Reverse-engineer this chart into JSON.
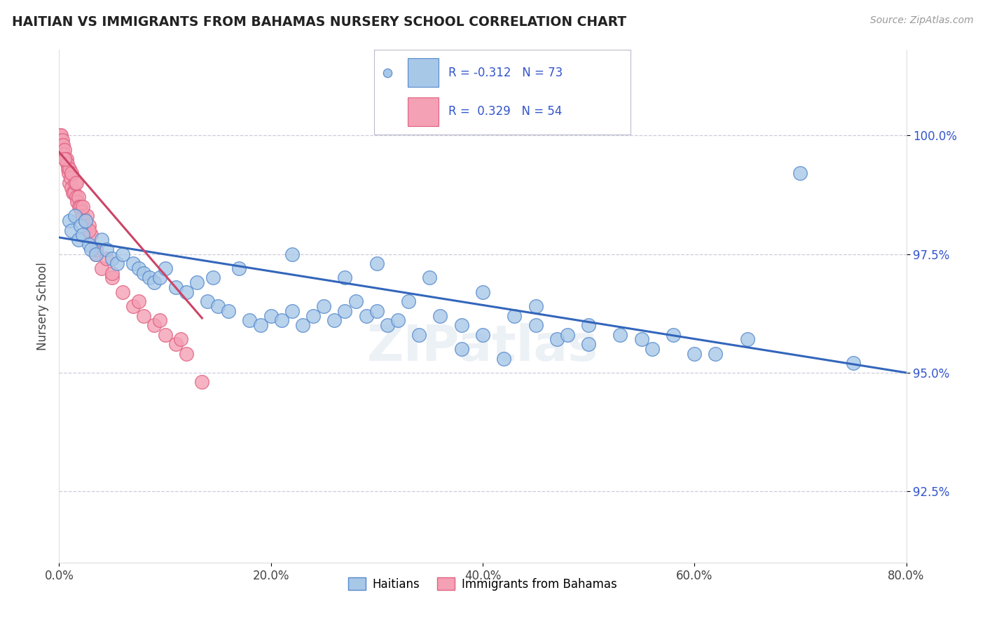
{
  "title": "HAITIAN VS IMMIGRANTS FROM BAHAMAS NURSERY SCHOOL CORRELATION CHART",
  "source": "Source: ZipAtlas.com",
  "ylabel": "Nursery School",
  "x_tick_labels": [
    "0.0%",
    "20.0%",
    "40.0%",
    "60.0%",
    "80.0%"
  ],
  "x_tick_vals": [
    0.0,
    20.0,
    40.0,
    60.0,
    80.0
  ],
  "y_tick_labels": [
    "92.5%",
    "95.0%",
    "97.5%",
    "100.0%"
  ],
  "y_tick_vals": [
    92.5,
    95.0,
    97.5,
    100.0
  ],
  "xlim": [
    0.0,
    80.0
  ],
  "ylim": [
    91.0,
    101.8
  ],
  "legend_label1": "Haitians",
  "legend_label2": "Immigrants from Bahamas",
  "r1": "-0.312",
  "n1": "73",
  "r2": "0.329",
  "n2": "54",
  "color_blue": "#a8c8e8",
  "color_pink": "#f4a0b5",
  "color_blue_edge": "#5588cc",
  "color_pink_edge": "#e06080",
  "color_blue_line": "#3366bb",
  "color_pink_line": "#cc4466",
  "color_blue_text": "#3355cc",
  "background_color": "#ffffff",
  "grid_color": "#ccccdd",
  "blue_x": [
    1.0,
    1.2,
    1.5,
    1.8,
    2.0,
    2.2,
    2.5,
    2.8,
    3.0,
    3.5,
    4.0,
    4.5,
    5.0,
    5.5,
    6.0,
    7.0,
    7.5,
    8.0,
    8.5,
    9.0,
    9.5,
    10.0,
    11.0,
    12.0,
    13.0,
    14.0,
    14.5,
    15.0,
    16.0,
    17.0,
    18.0,
    19.0,
    20.0,
    21.0,
    22.0,
    23.0,
    24.0,
    25.0,
    26.0,
    27.0,
    28.0,
    29.0,
    30.0,
    31.0,
    32.0,
    34.0,
    36.0,
    38.0,
    40.0,
    43.0,
    45.0,
    47.0,
    50.0,
    53.0,
    56.0,
    58.0,
    62.0,
    65.0,
    70.0,
    75.0,
    30.0,
    35.0,
    40.0,
    45.0,
    50.0,
    55.0,
    22.0,
    27.0,
    33.0,
    48.0,
    60.0,
    38.0,
    42.0
  ],
  "blue_y": [
    98.2,
    98.0,
    98.3,
    97.8,
    98.1,
    97.9,
    98.2,
    97.7,
    97.6,
    97.5,
    97.8,
    97.6,
    97.4,
    97.3,
    97.5,
    97.3,
    97.2,
    97.1,
    97.0,
    96.9,
    97.0,
    97.2,
    96.8,
    96.7,
    96.9,
    96.5,
    97.0,
    96.4,
    96.3,
    97.2,
    96.1,
    96.0,
    96.2,
    96.1,
    96.3,
    96.0,
    96.2,
    96.4,
    96.1,
    96.3,
    96.5,
    96.2,
    96.3,
    96.0,
    96.1,
    95.8,
    96.2,
    96.0,
    95.8,
    96.2,
    96.0,
    95.7,
    95.6,
    95.8,
    95.5,
    95.8,
    95.4,
    95.7,
    99.2,
    95.2,
    97.3,
    97.0,
    96.7,
    96.4,
    96.0,
    95.7,
    97.5,
    97.0,
    96.5,
    95.8,
    95.4,
    95.5,
    95.3
  ],
  "blue_trend_x": [
    0.0,
    80.0
  ],
  "blue_trend_y": [
    97.85,
    95.0
  ],
  "pink_x": [
    0.08,
    0.12,
    0.18,
    0.22,
    0.28,
    0.32,
    0.38,
    0.45,
    0.52,
    0.6,
    0.68,
    0.75,
    0.82,
    0.9,
    0.95,
    1.0,
    1.1,
    1.2,
    1.3,
    1.4,
    1.5,
    1.6,
    1.7,
    1.8,
    1.9,
    2.0,
    2.1,
    2.2,
    2.4,
    2.6,
    2.8,
    3.0,
    3.5,
    4.0,
    4.5,
    5.0,
    6.0,
    7.0,
    8.0,
    9.0,
    10.0,
    11.0,
    12.0,
    1.2,
    1.6,
    2.2,
    2.8,
    3.5,
    5.0,
    7.5,
    9.5,
    11.5,
    0.5,
    13.5
  ],
  "pink_y": [
    100.0,
    99.9,
    100.0,
    99.8,
    99.9,
    99.7,
    99.8,
    99.6,
    99.7,
    99.5,
    99.5,
    99.4,
    99.3,
    99.2,
    99.3,
    99.0,
    99.1,
    98.9,
    98.8,
    98.8,
    99.0,
    98.7,
    98.6,
    98.7,
    98.5,
    98.5,
    98.4,
    98.3,
    98.2,
    98.3,
    98.1,
    97.9,
    97.5,
    97.2,
    97.4,
    97.0,
    96.7,
    96.4,
    96.2,
    96.0,
    95.8,
    95.6,
    95.4,
    99.2,
    99.0,
    98.5,
    98.0,
    97.6,
    97.1,
    96.5,
    96.1,
    95.7,
    99.5,
    94.8
  ],
  "pink_trend_x": [
    0.0,
    13.5
  ],
  "pink_trend_y": [
    99.65,
    96.15
  ]
}
